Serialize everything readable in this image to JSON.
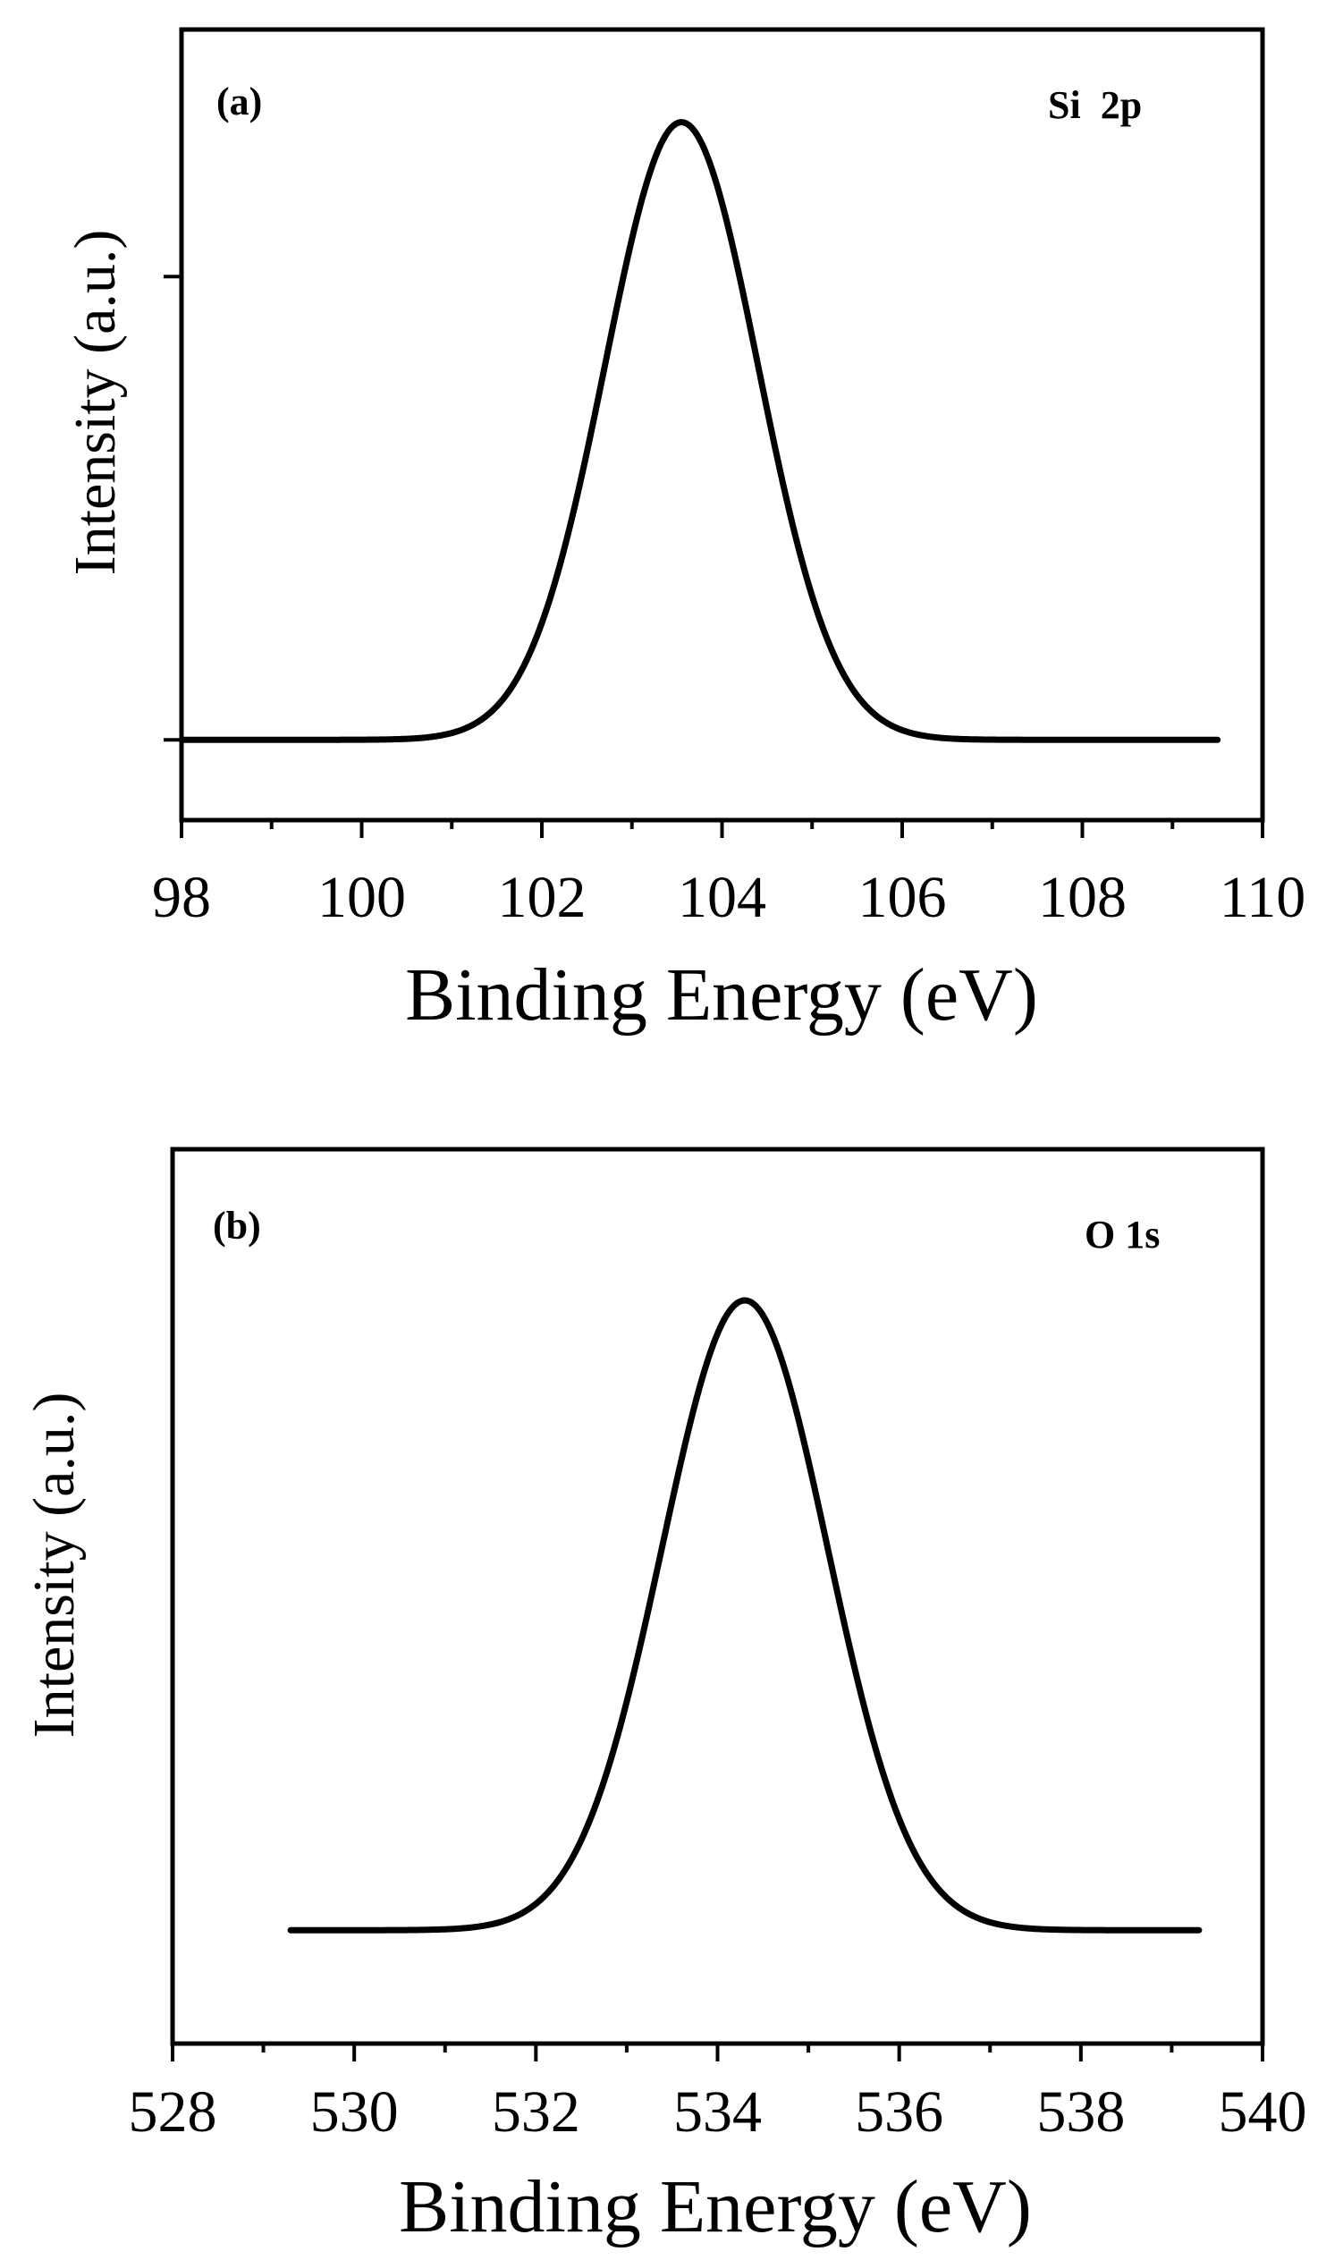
{
  "chart_data": [
    {
      "type": "line",
      "panel_label": "(a)",
      "annotation": "Si  2p",
      "xlabel": "Binding Energy (eV)",
      "ylabel": "Intensity (a.u.)",
      "xlim": [
        98,
        110
      ],
      "ylim": [
        -0.13,
        1.15
      ],
      "x_ticks": [
        98,
        100,
        102,
        104,
        106,
        108,
        110
      ],
      "x_minor_step": 1,
      "y_ticks": [
        0,
        0.75
      ],
      "series": [
        {
          "type": "gaussian",
          "center": 103.55,
          "fwhm": 2.0,
          "amplitude": 1.0,
          "baseline": 0.0,
          "x_range": [
            98,
            109.5
          ]
        }
      ]
    },
    {
      "type": "line",
      "panel_label": "(b)",
      "annotation": "O 1s",
      "xlabel": "Binding Energy (eV)",
      "ylabel": "Intensity (a.u.)",
      "xlim": [
        528,
        540
      ],
      "ylim": [
        -0.18,
        1.24
      ],
      "x_ticks": [
        528,
        530,
        532,
        534,
        536,
        538,
        540
      ],
      "x_minor_step": 1,
      "y_ticks": [],
      "series": [
        {
          "type": "gaussian",
          "center": 534.3,
          "fwhm": 2.15,
          "amplitude": 1.0,
          "baseline": 0.0,
          "x_range": [
            529.3,
            539.3
          ]
        }
      ]
    }
  ]
}
